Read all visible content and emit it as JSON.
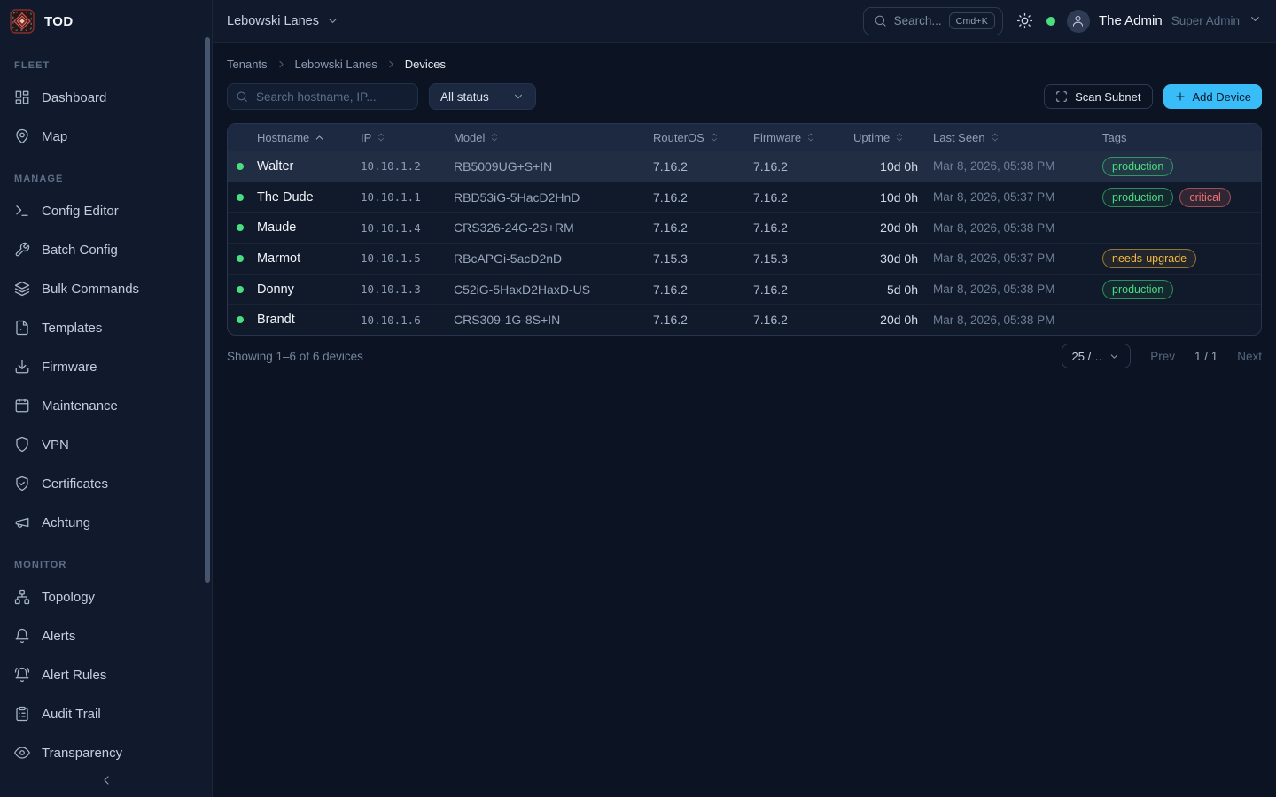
{
  "brand": {
    "name": "TOD"
  },
  "topbar": {
    "tenant_selector": "Lebowski Lanes",
    "search_placeholder": "Search...",
    "search_kbd": "Cmd+K",
    "user_name": "The Admin",
    "user_role": "Super Admin"
  },
  "sidebar": {
    "sections": [
      {
        "label": "FLEET",
        "items": [
          {
            "label": "Dashboard",
            "icon": "dashboard"
          },
          {
            "label": "Map",
            "icon": "map-pin"
          }
        ]
      },
      {
        "label": "MANAGE",
        "items": [
          {
            "label": "Config Editor",
            "icon": "terminal"
          },
          {
            "label": "Batch Config",
            "icon": "wrench"
          },
          {
            "label": "Bulk Commands",
            "icon": "layers"
          },
          {
            "label": "Templates",
            "icon": "file"
          },
          {
            "label": "Firmware",
            "icon": "download"
          },
          {
            "label": "Maintenance",
            "icon": "calendar"
          },
          {
            "label": "VPN",
            "icon": "shield"
          },
          {
            "label": "Certificates",
            "icon": "shield-check"
          },
          {
            "label": "Achtung",
            "icon": "megaphone"
          }
        ]
      },
      {
        "label": "MONITOR",
        "items": [
          {
            "label": "Topology",
            "icon": "network"
          },
          {
            "label": "Alerts",
            "icon": "bell"
          },
          {
            "label": "Alert Rules",
            "icon": "bell-ring"
          },
          {
            "label": "Audit Trail",
            "icon": "clipboard-list"
          },
          {
            "label": "Transparency",
            "icon": "eye"
          }
        ]
      }
    ]
  },
  "breadcrumb": [
    "Tenants",
    "Lebowski Lanes",
    "Devices"
  ],
  "toolbar": {
    "search_placeholder": "Search hostname, IP...",
    "status_filter_value": "All status",
    "scan_button": "Scan Subnet",
    "add_button": "Add Device"
  },
  "table": {
    "columns": [
      {
        "label": "",
        "key": "status",
        "sort": "none"
      },
      {
        "label": "Hostname",
        "key": "hostname",
        "sort": "asc"
      },
      {
        "label": "IP",
        "key": "ip",
        "sort": "both"
      },
      {
        "label": "Model",
        "key": "model",
        "sort": "both"
      },
      {
        "label": "RouterOS",
        "key": "routeros",
        "sort": "both"
      },
      {
        "label": "Firmware",
        "key": "firmware",
        "sort": "both"
      },
      {
        "label": "Uptime",
        "key": "uptime",
        "sort": "both"
      },
      {
        "label": "Last Seen",
        "key": "last_seen",
        "sort": "both"
      },
      {
        "label": "Tags",
        "key": "tags",
        "sort": "none"
      }
    ],
    "rows": [
      {
        "status": "online",
        "hostname": "Walter",
        "ip": "10.10.1.2",
        "model": "RB5009UG+S+IN",
        "routeros": "7.16.2",
        "firmware": "7.16.2",
        "uptime": "10d 0h",
        "last_seen": "Mar 8, 2026, 05:38 PM",
        "tags": [
          {
            "label": "production",
            "type": "green"
          }
        ],
        "highlighted": true
      },
      {
        "status": "online",
        "hostname": "The Dude",
        "ip": "10.10.1.1",
        "model": "RBD53iG-5HacD2HnD",
        "routeros": "7.16.2",
        "firmware": "7.16.2",
        "uptime": "10d 0h",
        "last_seen": "Mar 8, 2026, 05:37 PM",
        "tags": [
          {
            "label": "production",
            "type": "green"
          },
          {
            "label": "critical",
            "type": "red"
          }
        ],
        "highlighted": false
      },
      {
        "status": "online",
        "hostname": "Maude",
        "ip": "10.10.1.4",
        "model": "CRS326-24G-2S+RM",
        "routeros": "7.16.2",
        "firmware": "7.16.2",
        "uptime": "20d 0h",
        "last_seen": "Mar 8, 2026, 05:38 PM",
        "tags": [],
        "highlighted": false
      },
      {
        "status": "online",
        "hostname": "Marmot",
        "ip": "10.10.1.5",
        "model": "RBcAPGi-5acD2nD",
        "routeros": "7.15.3",
        "firmware": "7.15.3",
        "uptime": "30d 0h",
        "last_seen": "Mar 8, 2026, 05:37 PM",
        "tags": [
          {
            "label": "needs-upgrade",
            "type": "amber"
          }
        ],
        "highlighted": false
      },
      {
        "status": "online",
        "hostname": "Donny",
        "ip": "10.10.1.3",
        "model": "C52iG-5HaxD2HaxD-US",
        "routeros": "7.16.2",
        "firmware": "7.16.2",
        "uptime": "5d 0h",
        "last_seen": "Mar 8, 2026, 05:38 PM",
        "tags": [
          {
            "label": "production",
            "type": "green"
          }
        ],
        "highlighted": false
      },
      {
        "status": "online",
        "hostname": "Brandt",
        "ip": "10.10.1.6",
        "model": "CRS309-1G-8S+IN",
        "routeros": "7.16.2",
        "firmware": "7.16.2",
        "uptime": "20d 0h",
        "last_seen": "Mar 8, 2026, 05:38 PM",
        "tags": [],
        "highlighted": false
      }
    ]
  },
  "footer": {
    "summary": "Showing 1–6 of 6 devices",
    "page_size": "25 /…",
    "prev_label": "Prev",
    "page_indicator": "1 / 1",
    "next_label": "Next"
  },
  "colors": {
    "accent": "#38bdf8",
    "online": "#4ade80",
    "tag_production": "#4ade80",
    "tag_critical": "#f87171",
    "tag_needs_upgrade": "#f5b942"
  }
}
